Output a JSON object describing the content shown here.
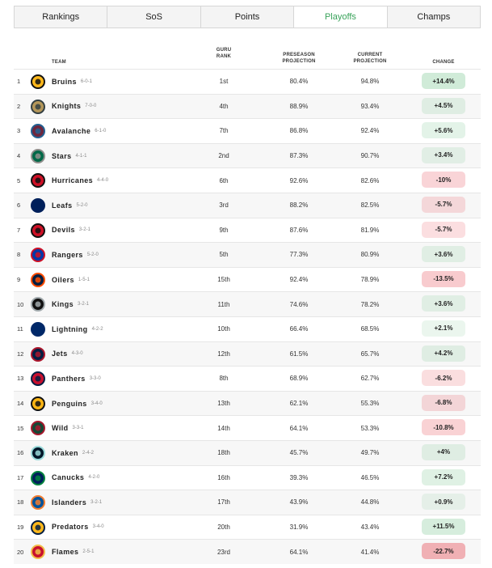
{
  "tabs": [
    {
      "label": "Rankings",
      "active": false
    },
    {
      "label": "SoS",
      "active": false
    },
    {
      "label": "Points",
      "active": false
    },
    {
      "label": "Playoffs",
      "active": true
    },
    {
      "label": "Champs",
      "active": false
    }
  ],
  "columns": {
    "team": "TEAM",
    "guru_1": "GURU",
    "guru_2": "RANK",
    "pre_1": "PRESEASON",
    "pre_2": "PROJECTION",
    "cur_1": "CURRENT",
    "cur_2": "PROJECTION",
    "change": "CHANGE"
  },
  "rows": [
    {
      "rank": "1",
      "team": "Bruins",
      "record": "6-0-1",
      "guru": "1st",
      "pre": "80.4%",
      "cur": "94.8%",
      "change": "+14.4%",
      "change_value": 14.4,
      "logo": "bruins-logo",
      "colors": [
        "#FFB81C",
        "#111111"
      ]
    },
    {
      "rank": "2",
      "team": "Knights",
      "record": "7-0-0",
      "guru": "4th",
      "pre": "88.9%",
      "cur": "93.4%",
      "change": "+4.5%",
      "change_value": 4.5,
      "logo": "knights-logo",
      "colors": [
        "#B4975A",
        "#333F42"
      ]
    },
    {
      "rank": "3",
      "team": "Avalanche",
      "record": "6-1-0",
      "guru": "7th",
      "pre": "86.8%",
      "cur": "92.4%",
      "change": "+5.6%",
      "change_value": 5.6,
      "logo": "avalanche-logo",
      "colors": [
        "#6F263D",
        "#236192"
      ]
    },
    {
      "rank": "4",
      "team": "Stars",
      "record": "4-1-1",
      "guru": "2nd",
      "pre": "87.3%",
      "cur": "90.7%",
      "change": "+3.4%",
      "change_value": 3.4,
      "logo": "stars-logo",
      "colors": [
        "#006847",
        "#8F8F8C"
      ]
    },
    {
      "rank": "5",
      "team": "Hurricanes",
      "record": "4-4-0",
      "guru": "6th",
      "pre": "92.6%",
      "cur": "82.6%",
      "change": "-10%",
      "change_value": -10,
      "logo": "hurricanes-logo",
      "colors": [
        "#CE1126",
        "#111111"
      ]
    },
    {
      "rank": "6",
      "team": "Leafs",
      "record": "5-2-0",
      "guru": "3rd",
      "pre": "88.2%",
      "cur": "82.5%",
      "change": "-5.7%",
      "change_value": -5.7,
      "logo": "leafs-logo",
      "colors": [
        "#00205B",
        "#00205B"
      ]
    },
    {
      "rank": "7",
      "team": "Devils",
      "record": "3-2-1",
      "guru": "9th",
      "pre": "87.6%",
      "cur": "81.9%",
      "change": "-5.7%",
      "change_value": -5.7,
      "logo": "devils-logo",
      "colors": [
        "#CE1126",
        "#111111"
      ]
    },
    {
      "rank": "8",
      "team": "Rangers",
      "record": "5-2-0",
      "guru": "5th",
      "pre": "77.3%",
      "cur": "80.9%",
      "change": "+3.6%",
      "change_value": 3.6,
      "logo": "rangers-logo",
      "colors": [
        "#0038A8",
        "#CE1126"
      ]
    },
    {
      "rank": "9",
      "team": "Oilers",
      "record": "1-5-1",
      "guru": "15th",
      "pre": "92.4%",
      "cur": "78.9%",
      "change": "-13.5%",
      "change_value": -13.5,
      "logo": "oilers-logo",
      "colors": [
        "#041E42",
        "#FF4C00"
      ]
    },
    {
      "rank": "10",
      "team": "Kings",
      "record": "3-2-1",
      "guru": "11th",
      "pre": "74.6%",
      "cur": "78.2%",
      "change": "+3.6%",
      "change_value": 3.6,
      "logo": "kings-logo",
      "colors": [
        "#111111",
        "#A2AAAD"
      ]
    },
    {
      "rank": "11",
      "team": "Lightning",
      "record": "4-2-2",
      "guru": "10th",
      "pre": "66.4%",
      "cur": "68.5%",
      "change": "+2.1%",
      "change_value": 2.1,
      "logo": "lightning-logo",
      "colors": [
        "#002868",
        "#002868"
      ]
    },
    {
      "rank": "12",
      "team": "Jets",
      "record": "4-3-0",
      "guru": "12th",
      "pre": "61.5%",
      "cur": "65.7%",
      "change": "+4.2%",
      "change_value": 4.2,
      "logo": "jets-logo",
      "colors": [
        "#041E42",
        "#AC162C"
      ]
    },
    {
      "rank": "13",
      "team": "Panthers",
      "record": "3-3-0",
      "guru": "8th",
      "pre": "68.9%",
      "cur": "62.7%",
      "change": "-6.2%",
      "change_value": -6.2,
      "logo": "panthers-logo",
      "colors": [
        "#C8102E",
        "#041E42"
      ]
    },
    {
      "rank": "14",
      "team": "Penguins",
      "record": "3-4-0",
      "guru": "13th",
      "pre": "62.1%",
      "cur": "55.3%",
      "change": "-6.8%",
      "change_value": -6.8,
      "logo": "penguins-logo",
      "colors": [
        "#FCB514",
        "#111111"
      ]
    },
    {
      "rank": "15",
      "team": "Wild",
      "record": "3-3-1",
      "guru": "14th",
      "pre": "64.1%",
      "cur": "53.3%",
      "change": "-10.8%",
      "change_value": -10.8,
      "logo": "wild-logo",
      "colors": [
        "#154734",
        "#A6192E"
      ]
    },
    {
      "rank": "16",
      "team": "Kraken",
      "record": "2-4-2",
      "guru": "18th",
      "pre": "45.7%",
      "cur": "49.7%",
      "change": "+4%",
      "change_value": 4,
      "logo": "kraken-logo",
      "colors": [
        "#001628",
        "#99D9D9"
      ]
    },
    {
      "rank": "17",
      "team": "Canucks",
      "record": "4-2-0",
      "guru": "16th",
      "pre": "39.3%",
      "cur": "46.5%",
      "change": "+7.2%",
      "change_value": 7.2,
      "logo": "canucks-logo",
      "colors": [
        "#00205B",
        "#00843D"
      ]
    },
    {
      "rank": "18",
      "team": "Islanders",
      "record": "3-2-1",
      "guru": "17th",
      "pre": "43.9%",
      "cur": "44.8%",
      "change": "+0.9%",
      "change_value": 0.9,
      "logo": "islanders-logo",
      "colors": [
        "#00539B",
        "#F47D30"
      ]
    },
    {
      "rank": "19",
      "team": "Predators",
      "record": "3-4-0",
      "guru": "20th",
      "pre": "31.9%",
      "cur": "43.4%",
      "change": "+11.5%",
      "change_value": 11.5,
      "logo": "predators-logo",
      "colors": [
        "#FFB81C",
        "#041E42"
      ]
    },
    {
      "rank": "20",
      "team": "Flames",
      "record": "2-5-1",
      "guru": "23rd",
      "pre": "64.1%",
      "cur": "41.4%",
      "change": "-22.7%",
      "change_value": -22.7,
      "logo": "flames-logo",
      "colors": [
        "#C8102E",
        "#F1BE48"
      ]
    }
  ]
}
